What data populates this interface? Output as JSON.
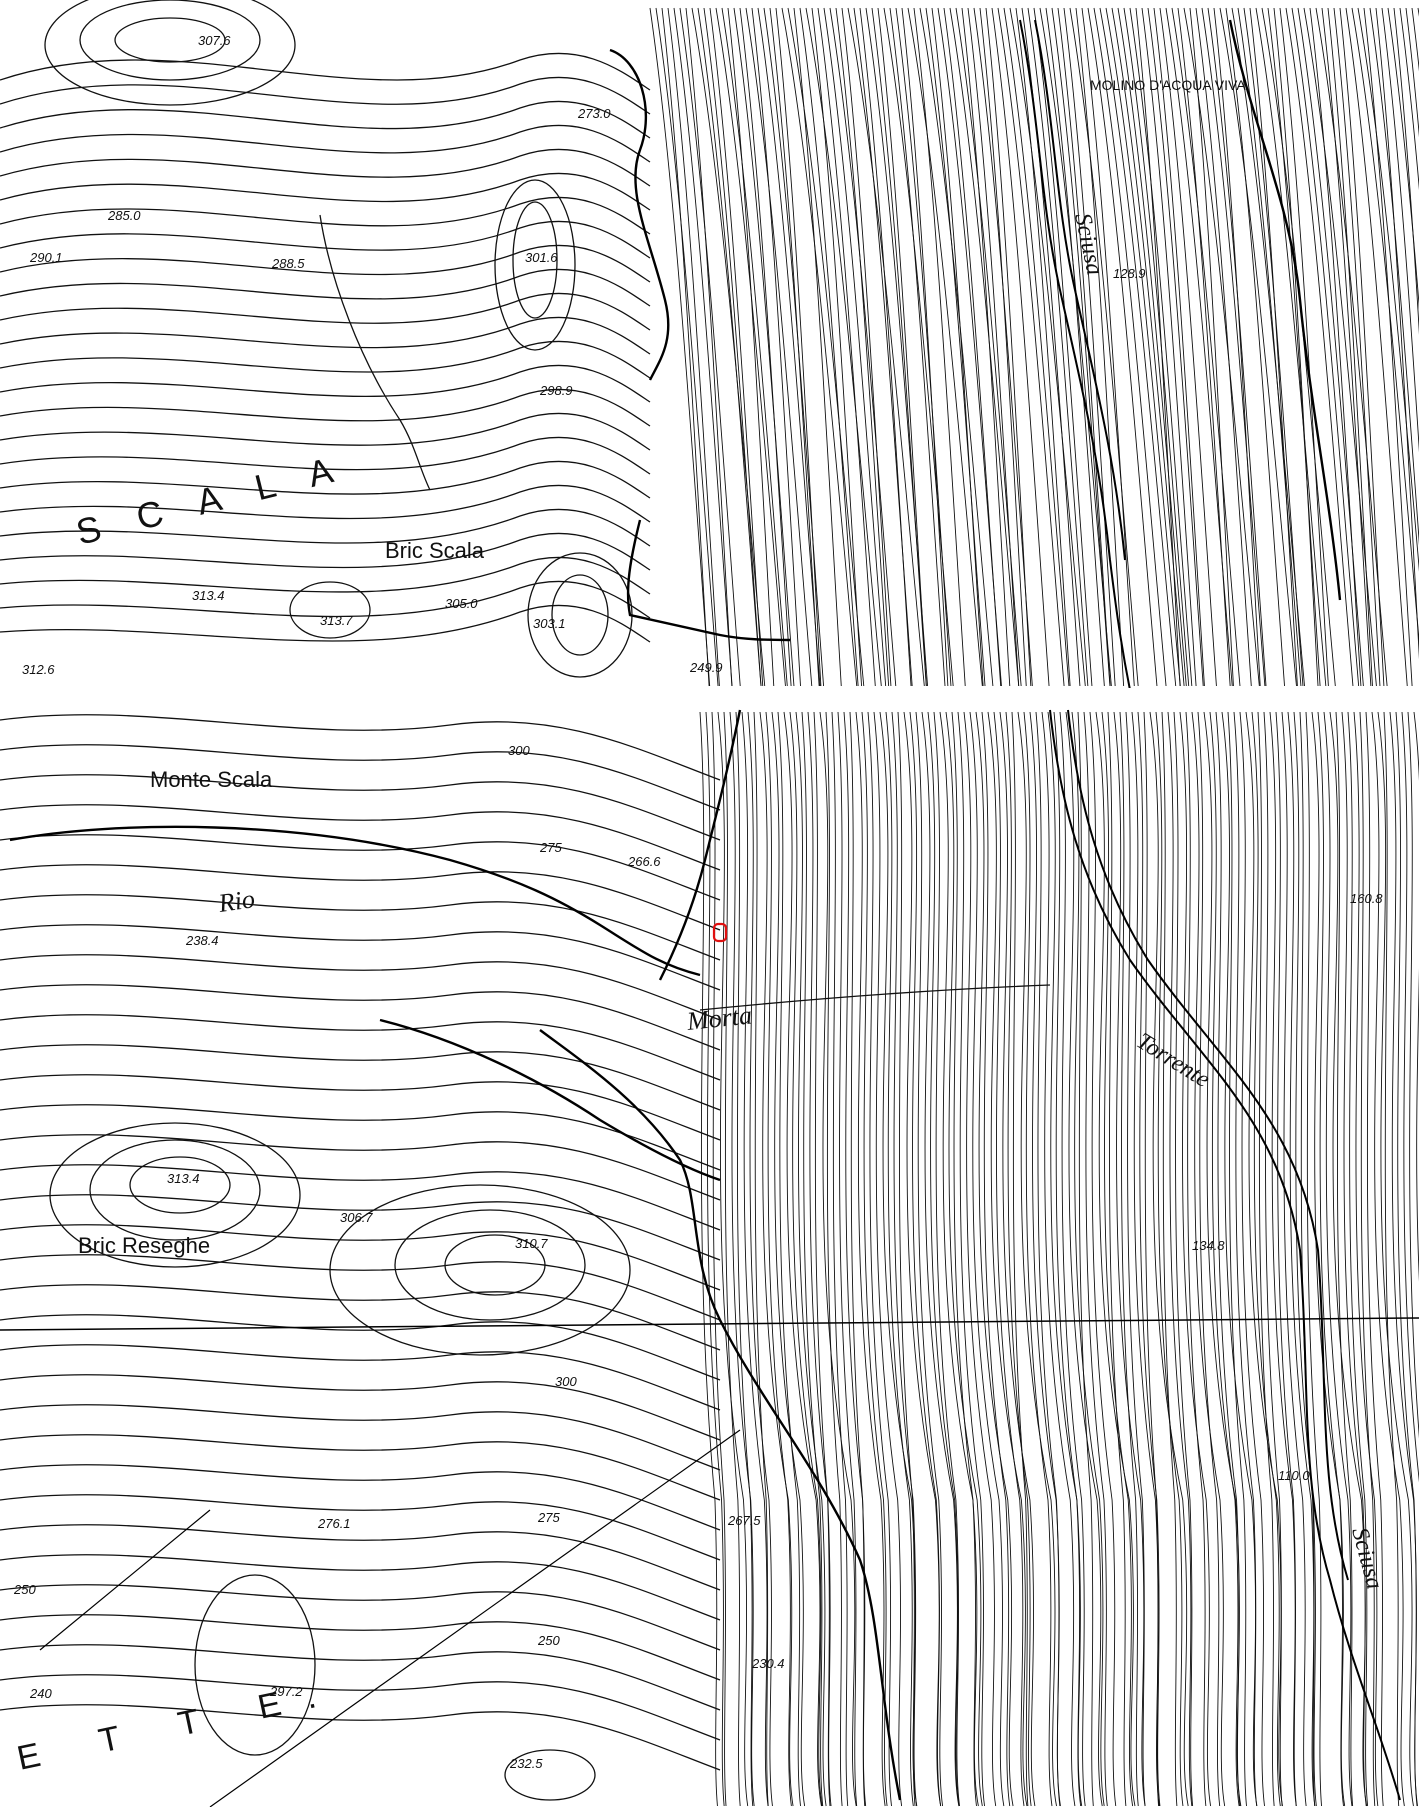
{
  "map": {
    "place_labels": {
      "scala": "S C A L A",
      "bric_scala": "Bric Scala",
      "monte_scala": "Monte Scala",
      "rio": "Rio",
      "morta": "Morta",
      "bric_reseghe": "Bric Reseghe",
      "torrente": "Torrente",
      "sciusa_north": "Sciusa",
      "sciusa_south": "Sciusa",
      "molino": "MOLINO D'ACQUA VIVA",
      "bottom_letters": "E T T E."
    },
    "elevations": {
      "e307_6": "307.6",
      "e285_0": "285.0",
      "e290_1": "290.1",
      "e288_5": "288.5",
      "e301_6": "301.6",
      "e273_0": "273.0",
      "e298_9": "298.9",
      "e313_4a": "313.4",
      "e313_7": "313.7",
      "e305_0": "305.0",
      "e303_1": "303.1",
      "e312_6": "312.6",
      "e249_9": "249.9",
      "e300a": "300",
      "e275a": "275",
      "e266_6": "266.6",
      "e238_4": "238.4",
      "e313_4b": "313.4",
      "e306_7": "306.7",
      "e310_7": "310.7",
      "e300b": "300",
      "e276_1": "276.1",
      "e275b": "275",
      "e267_5": "267.5",
      "e250a": "250",
      "e250b": "250",
      "e297_2": "297.2",
      "e230_4": "230.4",
      "e232_5": "232.5",
      "e240": "240",
      "e160_8": "160.8",
      "e128_9": "128.9",
      "e134_8": "134.8",
      "e110_0": "110.0"
    },
    "marker": {
      "color": "#e01010",
      "name": "location-marker"
    },
    "ink_color": "#111111",
    "paper_color": "#ffffff"
  }
}
